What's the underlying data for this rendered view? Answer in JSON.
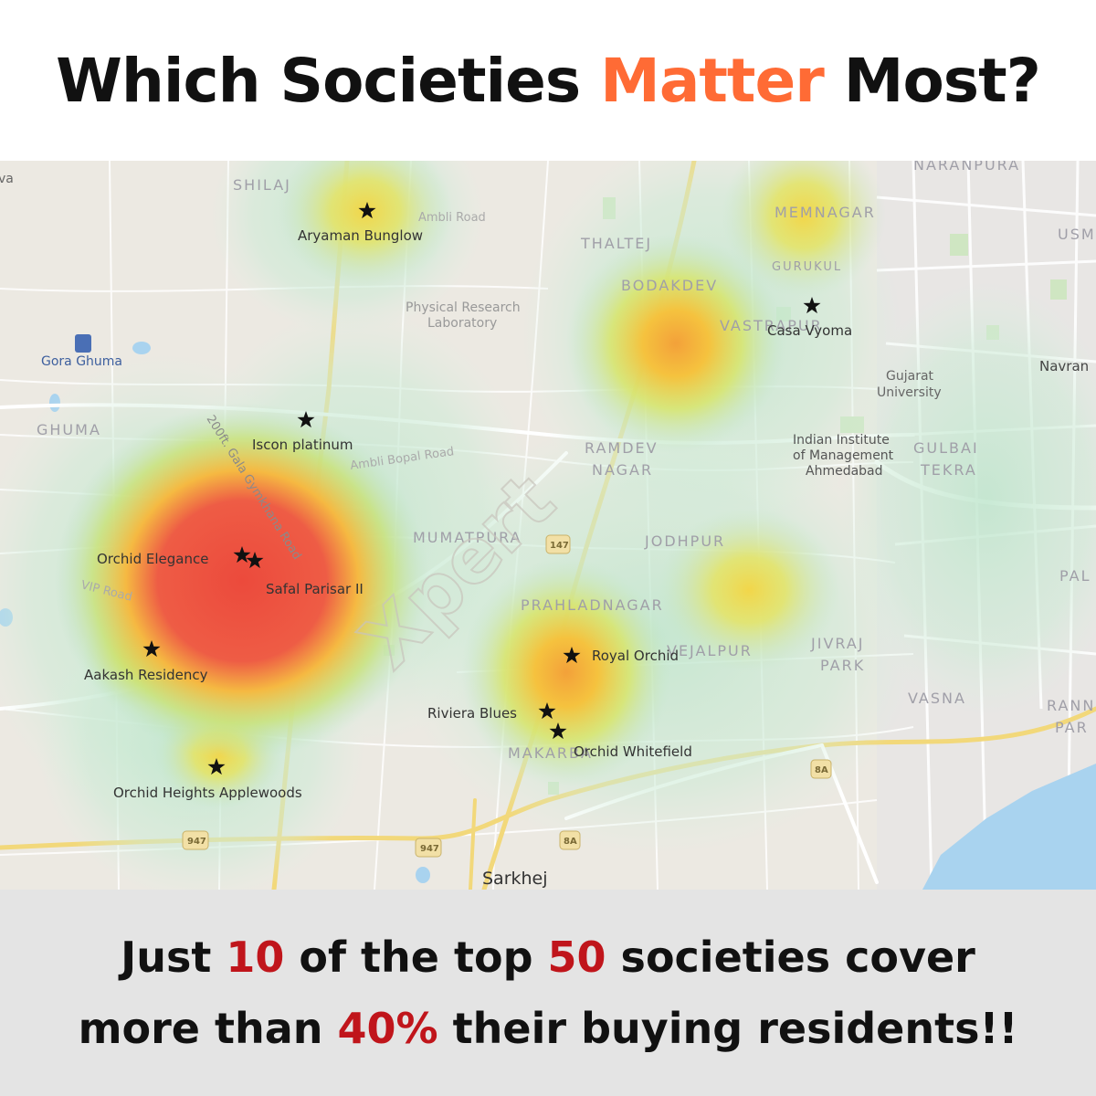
{
  "header": {
    "title_part1": "Which Societies ",
    "title_accent": "Matter",
    "title_part2": " Most?",
    "accent_color": "#ff6b35"
  },
  "map": {
    "societies": [
      {
        "name": "Aryaman Bunglow"
      },
      {
        "name": "Casa Vyoma"
      },
      {
        "name": "Iscon platinum"
      },
      {
        "name": "Orchid Elegance"
      },
      {
        "name": "Safal Parisar II"
      },
      {
        "name": "Aakash Residency"
      },
      {
        "name": "Orchid Heights Applewoods"
      },
      {
        "name": "Royal Orchid"
      },
      {
        "name": "Riviera Blues"
      },
      {
        "name": "Orchid Whitefield"
      }
    ],
    "areas": {
      "shilaj": "SHILAJ",
      "thaltej": "THALTEJ",
      "memnagar": "MEMNAGAR",
      "gurukul": "GURUKUL",
      "bodakdev": "BODAKDEV",
      "vastrapur": "VASTRAPUR",
      "naranpura": "NARANPURA",
      "usm": "USM",
      "ghuma": "GHUMA",
      "ramdev1": "RAMDEV",
      "ramdev2": "NAGAR",
      "gulbai1": "GULBAI",
      "gulbai2": "TEKRA",
      "mumatpura": "MUMATPURA",
      "jodhpur": "JODHPUR",
      "prahladnagar": "PRAHLADNAGAR",
      "vejalpur": "VEJALPUR",
      "jivraj1": "JIVRAJ",
      "jivraj2": "PARK",
      "vasna": "VASNA",
      "makarba": "MAKARBA",
      "pal": "PAL",
      "rann1": "RANN",
      "rann2": "PAR"
    },
    "places": {
      "gora_ghuma": "Gora Ghuma",
      "navrang": "Navran",
      "gujarat1": "Gujarat",
      "gujarat2": "University",
      "iim1": "Indian Institute",
      "iim2": "of Management",
      "iim3": "Ahmedabad",
      "prl1": "Physical Research",
      "prl2": "Laboratory",
      "sarkhej": "Sarkhej",
      "edge_va": "va"
    },
    "roads": {
      "ambli": "Ambli Road",
      "ambli_bopal": "Ambli Bopal Road",
      "gala": "200ft. Gala Gymkhana Road",
      "vip": "VIP Road"
    },
    "shields": {
      "s947a": "947",
      "s947b": "947",
      "s147": "147",
      "s8a1": "8A",
      "s8a2": "8A"
    },
    "watermark": "Xpert"
  },
  "footer": {
    "line1_a": "Just ",
    "line1_n1": "10",
    "line1_b": " of the top ",
    "line1_n2": "50",
    "line1_c": " societies cover",
    "line2_a": "more than ",
    "line2_n": "40%",
    "line2_b": " their buying residents!!",
    "highlight_color": "#c0151b"
  }
}
